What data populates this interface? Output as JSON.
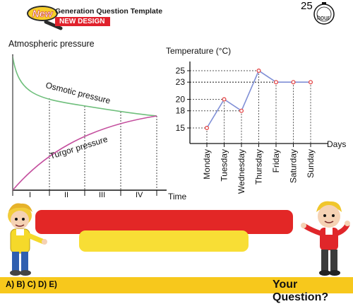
{
  "header": {
    "badge": "New",
    "title": "Generation Question Template",
    "subtitle": "NEW DESIGN",
    "clock_number": "25",
    "clock_unit": "hour"
  },
  "left_diagram": {
    "ylabel": "Atmospheric pressure",
    "xlabel": "Time",
    "curve_top_label": "Osmotic pressure",
    "curve_bottom_label": "Turgor pressure",
    "phases": [
      "I",
      "II",
      "III",
      "IV"
    ],
    "colors": {
      "osmotic": "#6fbf7c",
      "turgor": "#c44f9e",
      "stem": "#7a7a7a"
    }
  },
  "chart_data": {
    "type": "line",
    "ylabel": "Temperature (°C)",
    "xlabel": "Days",
    "categories": [
      "Monday",
      "Tuesday",
      "Wednesday",
      "Thursday",
      "Friday",
      "Saturday",
      "Sunday"
    ],
    "values": [
      15,
      20,
      18,
      25,
      23,
      23,
      23
    ],
    "yticks": [
      15,
      18,
      20,
      23,
      25
    ],
    "line_color": "#7f8fd6",
    "marker_color": "#e23b3b"
  },
  "footer": {
    "answers": "A) B) C) D) E)",
    "question": "Your Question?"
  }
}
